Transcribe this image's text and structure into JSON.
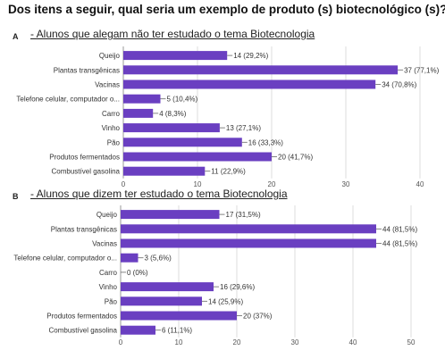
{
  "question": "Dos itens a seguir, qual seria um exemplo de produto (s) biotecnológico (s)?",
  "chart_data": [
    {
      "type": "bar",
      "orientation": "horizontal",
      "panel": "A",
      "title": "- Alunos que alegam não ter estudado  o tema Biotecnologia",
      "categories": [
        "Queijo",
        "Plantas transgênicas",
        "Vacinas",
        "Telefone celular, computador o...",
        "Carro",
        "Vinho",
        "Pão",
        "Produtos fermentados",
        "Combustível gasolina"
      ],
      "values": [
        14,
        37,
        34,
        5,
        4,
        13,
        16,
        20,
        11
      ],
      "labels": [
        "14 (29,2%)",
        "37 (77,1%)",
        "34 (70,8%)",
        "5 (10,4%)",
        "4 (8,3%)",
        "13 (27,1%)",
        "16 (33,3%)",
        "20 (41,7%)",
        "11 (22,9%)"
      ],
      "xticks": [
        "0",
        "10",
        "20",
        "30",
        "40"
      ],
      "xlim": [
        0,
        40
      ],
      "color": "#6a3fc1",
      "grid": true
    },
    {
      "type": "bar",
      "orientation": "horizontal",
      "panel": "B",
      "title": "- Alunos que  dizem ter estudado o tema Biotecnologia",
      "categories": [
        "Queijo",
        "Plantas transgênicas",
        "Vacinas",
        "Telefone celular, computador o...",
        "Carro",
        "Vinho",
        "Pão",
        "Produtos fermentados",
        "Combustível gasolina"
      ],
      "values": [
        17,
        44,
        44,
        3,
        0,
        16,
        14,
        20,
        6
      ],
      "labels": [
        "17 (31,5%)",
        "44 (81,5%)",
        "44 (81,5%)",
        "3 (5,6%)",
        "0 (0%)",
        "16 (29,6%)",
        "14 (25,9%)",
        "20 (37%)",
        "6 (11,1%)"
      ],
      "xticks": [
        "0",
        "10",
        "20",
        "30",
        "40",
        "50"
      ],
      "xlim": [
        0,
        50
      ],
      "color": "#6a3fc1",
      "grid": true
    }
  ]
}
